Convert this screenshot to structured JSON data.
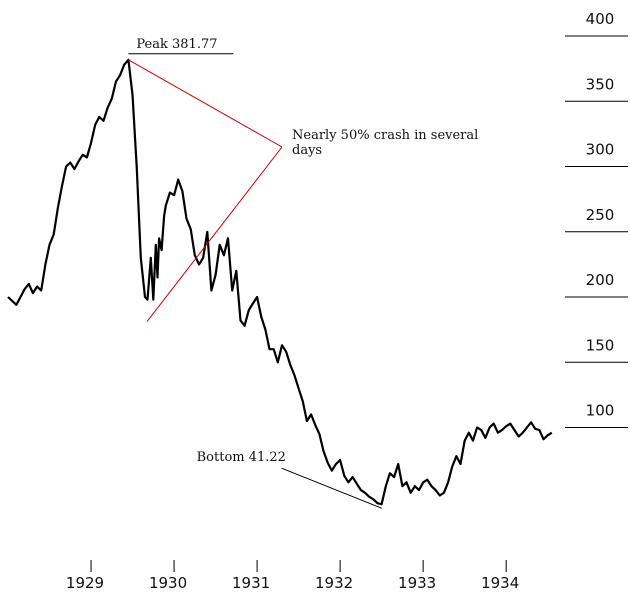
{
  "chart_data": {
    "type": "line",
    "title": "",
    "xlabel": "",
    "ylabel": "",
    "ylim": [
      0,
      400
    ],
    "y_ticks": [
      "400",
      "350",
      "300",
      "250",
      "200",
      "150",
      "100"
    ],
    "x_ticks": [
      "1929",
      "1930",
      "1931",
      "1932",
      "1933",
      "1934"
    ],
    "xlim": [
      1928.0,
      1934.6
    ],
    "grid": false,
    "line_color": "#000000",
    "annotation_color": "#cc0000",
    "series": [
      {
        "x": [
          1928.0,
          1928.05,
          1928.1,
          1928.15,
          1928.2,
          1928.25,
          1928.3,
          1928.35,
          1928.4,
          1928.45,
          1928.5,
          1928.55,
          1928.6,
          1928.65,
          1928.7,
          1928.75,
          1928.8,
          1928.85,
          1928.9,
          1928.95,
          1929.0,
          1929.05,
          1929.1,
          1929.15,
          1929.2,
          1929.25,
          1929.3,
          1929.35,
          1929.4,
          1929.45,
          1929.5,
          1929.55,
          1929.6,
          1929.65,
          1929.68,
          1929.72,
          1929.75,
          1929.78,
          1929.8,
          1929.82,
          1929.85,
          1929.88,
          1929.9,
          1929.95,
          1930.0,
          1930.05,
          1930.1,
          1930.15,
          1930.2,
          1930.25,
          1930.3,
          1930.35,
          1930.4,
          1930.45,
          1930.5,
          1930.55,
          1930.6,
          1930.65,
          1930.7,
          1930.75,
          1930.8,
          1930.85,
          1930.9,
          1930.95,
          1931.0,
          1931.05,
          1931.1,
          1931.15,
          1931.2,
          1931.25,
          1931.3,
          1931.35,
          1931.4,
          1931.45,
          1931.5,
          1931.55,
          1931.6,
          1931.65,
          1931.7,
          1931.75,
          1931.8,
          1931.85,
          1931.9,
          1931.95,
          1932.0,
          1932.05,
          1932.1,
          1932.15,
          1932.2,
          1932.25,
          1932.3,
          1932.35,
          1932.4,
          1932.45,
          1932.5,
          1932.55,
          1932.6,
          1932.65,
          1932.7,
          1932.75,
          1932.8,
          1932.85,
          1932.9,
          1932.95,
          1933.0,
          1933.05,
          1933.1,
          1933.15,
          1933.2,
          1933.25,
          1933.3,
          1933.35,
          1933.4,
          1933.45,
          1933.5,
          1933.55,
          1933.6,
          1933.65,
          1933.7,
          1933.75,
          1933.8,
          1933.85,
          1933.9,
          1933.95,
          1934.0,
          1934.05,
          1934.1,
          1934.15,
          1934.2,
          1934.25,
          1934.3,
          1934.35,
          1934.4,
          1934.45,
          1934.5,
          1934.55
        ],
        "y": [
          200,
          197,
          194,
          200,
          206,
          210,
          203,
          208,
          205,
          225,
          240,
          248,
          268,
          285,
          300,
          303,
          298,
          304,
          309,
          307,
          318,
          332,
          338,
          335,
          345,
          352,
          365,
          370,
          378,
          381.77,
          355,
          300,
          230,
          200,
          198,
          230,
          198,
          240,
          215,
          245,
          236,
          262,
          270,
          280,
          278,
          290,
          281,
          260,
          252,
          232,
          225,
          230,
          250,
          205,
          217,
          240,
          232,
          245,
          205,
          220,
          182,
          178,
          190,
          195,
          200,
          185,
          175,
          160,
          160,
          150,
          163,
          158,
          148,
          140,
          130,
          120,
          105,
          110,
          102,
          95,
          82,
          73,
          67,
          72,
          75,
          63,
          58,
          62,
          57,
          52,
          50,
          47,
          45,
          42,
          41.22,
          55,
          65,
          62,
          72,
          55,
          58,
          50,
          55,
          52,
          58,
          60,
          55,
          52,
          48,
          50,
          58,
          70,
          78,
          72,
          90,
          96,
          90,
          100,
          98,
          92,
          100,
          103,
          96,
          98,
          101,
          103,
          98,
          93,
          96,
          100,
          104,
          99,
          98,
          91,
          94,
          96
        ]
      }
    ],
    "annotations": {
      "peak": {
        "label": "Peak 381.77",
        "x": 1929.45,
        "y": 381.77
      },
      "crash": {
        "label_line1": "Nearly 50% crash in several",
        "label_line2": "days",
        "trough_x": 1929.65,
        "trough_y": 198
      },
      "bottom": {
        "label": "Bottom 41.22",
        "x": 1932.5,
        "y": 41.22
      }
    }
  }
}
